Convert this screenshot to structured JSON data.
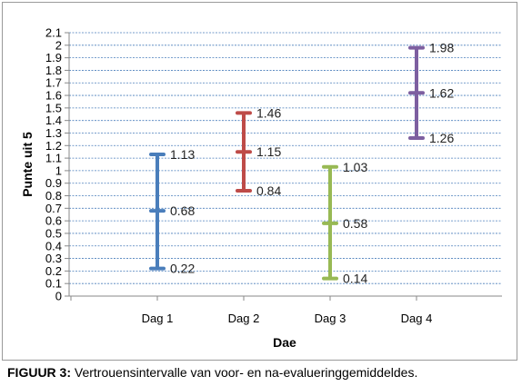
{
  "chart_data": {
    "type": "error-bar",
    "categories": [
      "Dag 1",
      "Dag 2",
      "Dag 3",
      "Dag 4"
    ],
    "points": [
      {
        "category": "Dag 1",
        "low": 0.22,
        "mid": 0.68,
        "high": 1.13,
        "low_label": "0.22",
        "mid_label": "0.68",
        "high_label": "1.13",
        "color": "#4a7ebb"
      },
      {
        "category": "Dag 2",
        "low": 0.84,
        "mid": 1.15,
        "high": 1.46,
        "low_label": "0.84",
        "mid_label": "1.15",
        "high_label": "1.46",
        "color": "#be4b48"
      },
      {
        "category": "Dag 3",
        "low": 0.14,
        "mid": 0.58,
        "high": 1.03,
        "low_label": "0.14",
        "mid_label": "0.58",
        "high_label": "1.03",
        "color": "#98b954"
      },
      {
        "category": "Dag 4",
        "low": 1.26,
        "mid": 1.62,
        "high": 1.98,
        "low_label": "1.26",
        "mid_label": "1.62",
        "high_label": "1.98",
        "color": "#7d5fa0"
      }
    ],
    "xlabel": "Dae",
    "ylabel": "Punte uit 5",
    "ylim": [
      0,
      2.1
    ],
    "yticks": [
      0,
      0.1,
      0.2,
      0.3,
      0.4,
      0.5,
      0.6,
      0.7,
      0.8,
      0.9,
      1,
      1.1,
      1.2,
      1.3,
      1.4,
      1.5,
      1.6,
      1.7,
      1.8,
      1.9,
      2,
      2.1
    ],
    "ytick_labels": [
      "0",
      "0.1",
      "0.2",
      "0.3",
      "0.4",
      "0.5",
      "0.6",
      "0.7",
      "0.8",
      "0.9",
      "1",
      "1.1",
      "1.2",
      "1.3",
      "1.4",
      "1.5",
      "1.6",
      "1.7",
      "1.8",
      "1.9",
      "2",
      "2.1"
    ],
    "grid": true,
    "grid_color": "#4a7ebb"
  },
  "caption": {
    "label": "FIGUUR 3:",
    "text": " Vertrouensintervalle van voor- en na-evalueringgemiddeldes."
  }
}
